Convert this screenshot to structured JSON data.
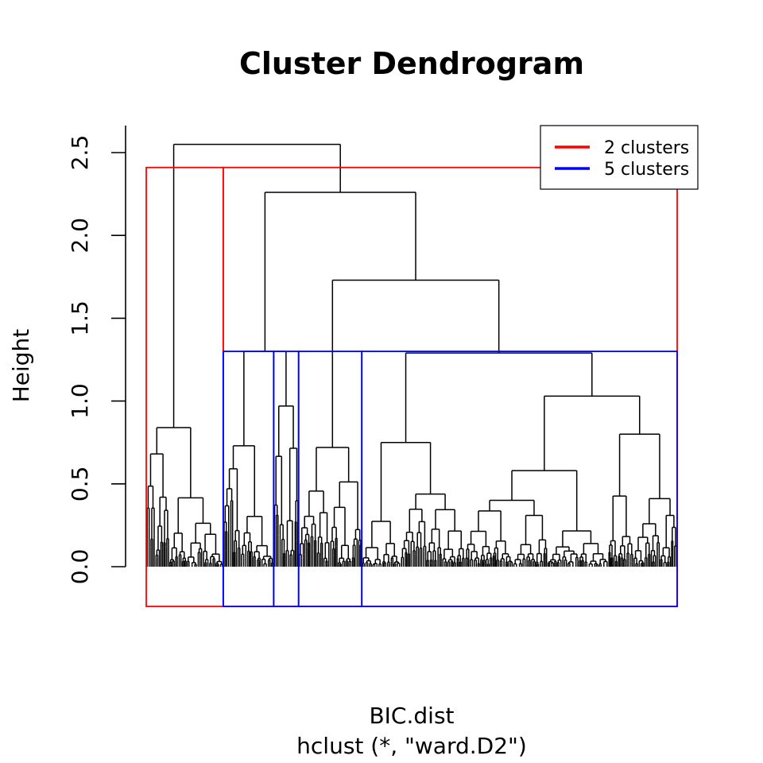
{
  "chart_data": {
    "type": "dendrogram",
    "title": "Cluster Dendrogram",
    "ylabel": "Height",
    "xlabel": "BIC.dist",
    "sub": "hclust (*, \"ward.D2\")",
    "ylim": [
      0,
      2.65
    ],
    "yticks": [
      0.0,
      0.5,
      1.0,
      1.5,
      2.0,
      2.5
    ],
    "ytick_labels": [
      "0.0",
      "0.5",
      "1.0",
      "1.5",
      "2.0",
      "2.5"
    ],
    "legend": {
      "position": "top-right",
      "entries": [
        {
          "label": "2 clusters",
          "color": "#ff0000"
        },
        {
          "label": "5 clusters",
          "color": "#0000ff"
        }
      ]
    },
    "merges": [
      {
        "id": "root",
        "height": 2.55,
        "left": "A",
        "right": "B"
      },
      {
        "id": "B",
        "height": 2.26,
        "left": "C",
        "right": "D"
      },
      {
        "id": "D",
        "height": 1.73,
        "left": "E",
        "right": "F"
      },
      {
        "id": "F",
        "height": 1.29,
        "left": "G",
        "right": "H"
      },
      {
        "id": "H",
        "height": 1.03,
        "left": "I",
        "right": "J"
      },
      {
        "id": "C",
        "height": 1.3,
        "left": "K",
        "right": "L"
      },
      {
        "id": "L",
        "height": 0.97
      },
      {
        "id": "A",
        "height": 0.84
      },
      {
        "id": "J",
        "height": 0.8
      },
      {
        "id": "G",
        "height": 0.75
      },
      {
        "id": "K",
        "height": 0.73
      },
      {
        "id": "E",
        "height": 0.72
      },
      {
        "id": "I",
        "height": 0.58
      }
    ],
    "cut_2_clusters": {
      "height": 2.41,
      "group_boundaries": [
        0,
        0.145,
        1.0
      ]
    },
    "cut_5_clusters": {
      "height": 1.3,
      "group_boundaries": [
        0.145,
        0.24,
        0.287,
        0.406,
        1.0
      ]
    }
  }
}
